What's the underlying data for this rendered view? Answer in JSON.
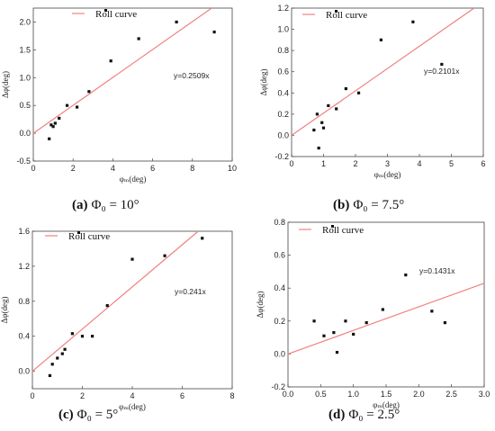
{
  "chart_data": [
    {
      "type": "scatter",
      "caption_letter": "(a)",
      "caption_rest": "Φ₀ = 10°",
      "xlabel": "φₘ(deg)",
      "ylabel": "Δφ(deg)",
      "xlim": [
        0,
        10
      ],
      "ylim": [
        -0.5,
        2.25
      ],
      "xticks": [
        0,
        2,
        4,
        6,
        8,
        10
      ],
      "yticks": [
        -0.5,
        0.0,
        0.5,
        1.0,
        1.5,
        2.0
      ],
      "xtick_labels": [
        "0",
        "2",
        "4",
        "6",
        "8",
        "10"
      ],
      "ytick_labels": [
        "-0.5",
        "0.0",
        "0.5",
        "1.0",
        "1.5",
        "2.0"
      ],
      "legend": "Roll curve",
      "equation": "y=0.2509x",
      "slope": 0.2509,
      "series": [
        {
          "x": [
            0.8,
            0.9,
            1.0,
            1.1,
            1.3,
            1.7,
            2.2,
            2.8,
            3.9,
            5.3,
            7.2,
            9.1
          ],
          "y": [
            -0.1,
            0.15,
            0.12,
            0.18,
            0.27,
            0.5,
            0.47,
            0.75,
            1.3,
            1.7,
            2.0,
            1.82
          ]
        }
      ]
    },
    {
      "type": "scatter",
      "caption_letter": "(b)",
      "caption_rest": "Φ₀ = 7.5°",
      "xlabel": "φₘ(deg)",
      "ylabel": "Δφ(deg)",
      "xlim": [
        0,
        6
      ],
      "ylim": [
        -0.2,
        1.2
      ],
      "xticks": [
        0,
        1,
        2,
        3,
        4,
        5,
        6
      ],
      "yticks": [
        -0.2,
        0.0,
        0.2,
        0.4,
        0.6,
        0.8,
        1.0,
        1.2
      ],
      "xtick_labels": [
        "0",
        "1",
        "2",
        "3",
        "4",
        "5",
        "6"
      ],
      "ytick_labels": [
        "-0.2",
        "0.0",
        "0.2",
        "0.4",
        "0.6",
        "0.8",
        "1.0",
        "1.2"
      ],
      "legend": "Roll curve",
      "equation": "y=0.2101x",
      "slope": 0.2101,
      "series": [
        {
          "x": [
            0.7,
            0.8,
            0.85,
            0.95,
            1.0,
            1.15,
            1.4,
            1.7,
            2.1,
            2.8,
            3.8,
            4.7
          ],
          "y": [
            0.05,
            0.2,
            -0.12,
            0.12,
            0.07,
            0.28,
            0.25,
            0.44,
            0.4,
            0.9,
            1.07,
            0.67
          ]
        }
      ]
    },
    {
      "type": "scatter",
      "caption_letter": "(c)",
      "caption_rest": "Φ₀ = 5°",
      "xlabel": "φₘ(deg)",
      "ylabel": "Δφ(deg)",
      "xlim": [
        0,
        8
      ],
      "ylim": [
        -0.2,
        1.6
      ],
      "xticks": [
        0,
        2,
        4,
        6,
        8
      ],
      "yticks": [
        0.0,
        0.4,
        0.8,
        1.2,
        1.6
      ],
      "xtick_labels": [
        "0",
        "2",
        "4",
        "6",
        "8"
      ],
      "ytick_labels": [
        "0.0",
        "0.4",
        "0.8",
        "1.2",
        "1.6"
      ],
      "legend": "Roll curve",
      "equation": "y=0.241x",
      "slope": 0.241,
      "series": [
        {
          "x": [
            0.7,
            0.8,
            1.0,
            1.2,
            1.3,
            1.6,
            2.0,
            2.4,
            3.0,
            4.0,
            5.3,
            6.8
          ],
          "y": [
            -0.05,
            0.08,
            0.15,
            0.2,
            0.25,
            0.43,
            0.4,
            0.4,
            0.75,
            1.28,
            1.32,
            1.52
          ]
        }
      ]
    },
    {
      "type": "scatter",
      "caption_letter": "(d)",
      "caption_rest": "Φ₀ = 2.5°",
      "xlabel": "φₘ(deg)",
      "ylabel": "Δφ(deg)",
      "xlim": [
        0,
        3.0
      ],
      "ylim": [
        -0.2,
        0.8
      ],
      "xticks": [
        0,
        0.5,
        1.0,
        1.5,
        2.0,
        2.5,
        3.0
      ],
      "yticks": [
        -0.2,
        0.0,
        0.2,
        0.4,
        0.6,
        0.8
      ],
      "xtick_labels": [
        "0.0",
        "0.5",
        "1.0",
        "1.5",
        "2.0",
        "2.5",
        "3.0"
      ],
      "ytick_labels": [
        "-0.2",
        "0.0",
        "0.2",
        "0.4",
        "0.6",
        "0.8"
      ],
      "legend": "Roll curve",
      "equation": "y=0.1431x",
      "slope": 0.1431,
      "series": [
        {
          "x": [
            0.4,
            0.55,
            0.7,
            0.75,
            0.88,
            1.0,
            1.2,
            1.45,
            1.8,
            2.2,
            2.4
          ],
          "y": [
            0.2,
            0.11,
            0.13,
            0.01,
            0.2,
            0.12,
            0.19,
            0.27,
            0.48,
            0.26,
            0.19
          ]
        }
      ]
    }
  ],
  "colors": {
    "fit_line": "#f08080",
    "points": "#111111",
    "axes": "#444444"
  }
}
